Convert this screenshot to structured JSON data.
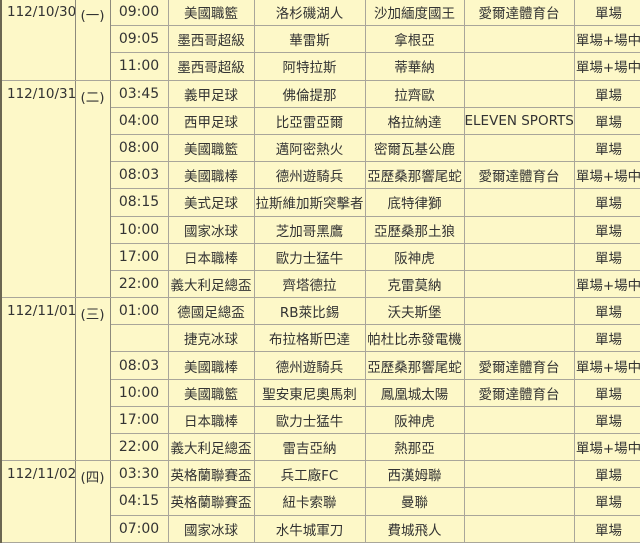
{
  "colors": {
    "background": "#fdf8c8",
    "grid": "#a9a69a",
    "text": "#333333"
  },
  "groups": [
    {
      "date": "112/10/30",
      "weekday": "(一)",
      "rows": [
        {
          "time": "09:00",
          "league": "美國職籃",
          "home": "洛杉磯湖人",
          "away": "沙加緬度國王",
          "tv": "愛爾達體育台",
          "bet": "單場"
        },
        {
          "time": "09:05",
          "league": "墨西哥超級",
          "home": "華雷斯",
          "away": "拿根亞",
          "tv": "",
          "bet": "單場+場中"
        },
        {
          "time": "11:00",
          "league": "墨西哥超級",
          "home": "阿特拉斯",
          "away": "蒂華納",
          "tv": "",
          "bet": "單場+場中"
        }
      ]
    },
    {
      "date": "112/10/31",
      "weekday": "(二)",
      "rows": [
        {
          "time": "03:45",
          "league": "義甲足球",
          "home": "佛倫提那",
          "away": "拉齊歐",
          "tv": "",
          "bet": "單場"
        },
        {
          "time": "04:00",
          "league": "西甲足球",
          "home": "比亞雷亞爾",
          "away": "格拉納達",
          "tv": "ELEVEN SPORTS",
          "bet": "單場"
        },
        {
          "time": "08:00",
          "league": "美國職籃",
          "home": "邁阿密熱火",
          "away": "密爾瓦基公鹿",
          "tv": "",
          "bet": "單場"
        },
        {
          "time": "08:03",
          "league": "美國職棒",
          "home": "德州遊騎兵",
          "away": "亞歷桑那響尾蛇",
          "tv": "愛爾達體育台",
          "bet": "單場+場中"
        },
        {
          "time": "08:15",
          "league": "美式足球",
          "home": "拉斯維加斯突擊者",
          "away": "底特律獅",
          "tv": "",
          "bet": "單場"
        },
        {
          "time": "10:00",
          "league": "國家冰球",
          "home": "芝加哥黑鷹",
          "away": "亞歷桑那土狼",
          "tv": "",
          "bet": "單場"
        },
        {
          "time": "17:00",
          "league": "日本職棒",
          "home": "歐力士猛牛",
          "away": "阪神虎",
          "tv": "",
          "bet": "單場"
        },
        {
          "time": "22:00",
          "league": "義大利足總盃",
          "home": "齊塔德拉",
          "away": "克雷莫納",
          "tv": "",
          "bet": "單場+場中"
        }
      ]
    },
    {
      "date": "112/11/01",
      "weekday": "(三)",
      "rows": [
        {
          "time": "01:00",
          "league": "德國足總盃",
          "home": "RB萊比錫",
          "away": "沃夫斯堡",
          "tv": "",
          "bet": "單場"
        },
        {
          "time": "",
          "league": "捷克冰球",
          "home": "布拉格斯巴達",
          "away": "帕杜比赤發電機",
          "tv": "",
          "bet": "單場"
        },
        {
          "time": "08:03",
          "league": "美國職棒",
          "home": "德州遊騎兵",
          "away": "亞歷桑那響尾蛇",
          "tv": "愛爾達體育台",
          "bet": "單場+場中"
        },
        {
          "time": "10:00",
          "league": "美國職籃",
          "home": "聖安東尼奧馬刺",
          "away": "鳳凰城太陽",
          "tv": "愛爾達體育台",
          "bet": "單場"
        },
        {
          "time": "17:00",
          "league": "日本職棒",
          "home": "歐力士猛牛",
          "away": "阪神虎",
          "tv": "",
          "bet": "單場"
        },
        {
          "time": "22:00",
          "league": "義大利足總盃",
          "home": "雷吉亞納",
          "away": "熱那亞",
          "tv": "",
          "bet": "單場+場中"
        }
      ]
    },
    {
      "date": "112/11/02",
      "weekday": "(四)",
      "rows": [
        {
          "time": "03:30",
          "league": "英格蘭聯賽盃",
          "home": "兵工廠FC",
          "away": "西漢姆聯",
          "tv": "",
          "bet": "單場"
        },
        {
          "time": "04:15",
          "league": "英格蘭聯賽盃",
          "home": "紐卡索聯",
          "away": "曼聯",
          "tv": "",
          "bet": "單場"
        },
        {
          "time": "07:00",
          "league": "國家冰球",
          "home": "水牛城軍刀",
          "away": "費城飛人",
          "tv": "",
          "bet": "單場"
        }
      ]
    }
  ]
}
